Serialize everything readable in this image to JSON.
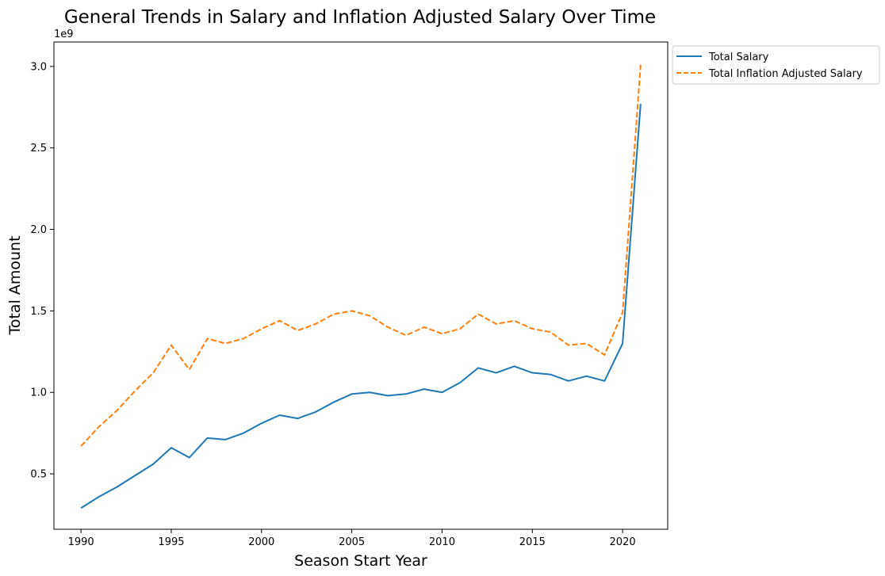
{
  "chart_data": {
    "type": "line",
    "title": "General Trends in Salary and Inflation Adjusted Salary Over Time",
    "xlabel": "Season Start Year",
    "ylabel": "Total Amount",
    "offset_label": "1e9",
    "xlim": [
      1988.5,
      2022.5
    ],
    "ylim": [
      0.16,
      3.15
    ],
    "xticks": [
      1990,
      1995,
      2000,
      2005,
      2010,
      2015,
      2020
    ],
    "xtick_labels": [
      "1990",
      "1995",
      "2000",
      "2005",
      "2010",
      "2015",
      "2020"
    ],
    "yticks": [
      0.5,
      1.0,
      1.5,
      2.0,
      2.5,
      3.0
    ],
    "ytick_labels": [
      "0.5",
      "1.0",
      "1.5",
      "2.0",
      "2.5",
      "3.0"
    ],
    "grid": false,
    "legend_position": "outside-top-right",
    "x": [
      1990,
      1991,
      1992,
      1993,
      1994,
      1995,
      1996,
      1997,
      1998,
      1999,
      2000,
      2001,
      2002,
      2003,
      2004,
      2005,
      2006,
      2007,
      2008,
      2009,
      2010,
      2011,
      2012,
      2013,
      2014,
      2015,
      2016,
      2017,
      2018,
      2019,
      2020,
      2021
    ],
    "series": [
      {
        "name": "Total Salary",
        "color": "#1f77b4",
        "dash": "solid",
        "values": [
          0.29,
          0.36,
          0.42,
          0.49,
          0.56,
          0.66,
          0.6,
          0.72,
          0.71,
          0.75,
          0.81,
          0.86,
          0.84,
          0.88,
          0.94,
          0.99,
          1.0,
          0.98,
          0.99,
          1.02,
          1.0,
          1.06,
          1.15,
          1.12,
          1.16,
          1.12,
          1.11,
          1.07,
          1.1,
          1.07,
          1.3,
          2.77
        ]
      },
      {
        "name": "Total Inflation Adjusted Salary",
        "color": "#ff7f0e",
        "dash": "dashed",
        "values": [
          0.67,
          0.79,
          0.89,
          1.01,
          1.12,
          1.29,
          1.14,
          1.33,
          1.3,
          1.33,
          1.39,
          1.44,
          1.38,
          1.42,
          1.48,
          1.5,
          1.47,
          1.4,
          1.35,
          1.4,
          1.36,
          1.39,
          1.48,
          1.42,
          1.44,
          1.39,
          1.37,
          1.29,
          1.3,
          1.23,
          1.49,
          3.01
        ]
      }
    ]
  }
}
